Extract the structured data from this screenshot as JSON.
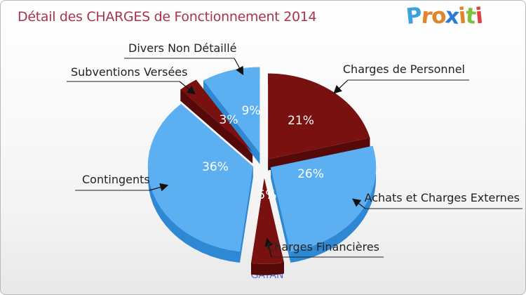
{
  "title": "Détail des CHARGES de Fonctionnement 2014",
  "logo": {
    "text": "Proxiti",
    "letters": [
      "P",
      "r",
      "o",
      "x",
      "i",
      "t",
      "i"
    ],
    "colors": [
      "#3da0e0",
      "#e0852c",
      "#e0852c",
      "#2c7ad8",
      "#e0852c",
      "#7fbf3a",
      "#e04040"
    ]
  },
  "commune": "GAYAN",
  "colors": {
    "blue": "#5cb0f2",
    "blue_side": "#2f88d3",
    "red": "#7a1111",
    "red_side": "#550909",
    "title": "#a8334e"
  },
  "chart_data": {
    "type": "pie",
    "title": "Détail des CHARGES de Fonctionnement 2014",
    "slices": [
      {
        "label": "Charges de Personnel",
        "value": 21,
        "pct_label": "21%",
        "color": "red"
      },
      {
        "label": "Achats et Charges Externes",
        "value": 26,
        "pct_label": "26%",
        "color": "blue"
      },
      {
        "label": "Charges Financières",
        "value": 5,
        "pct_label": "5%",
        "color": "red"
      },
      {
        "label": "Contingents",
        "value": 36,
        "pct_label": "36%",
        "color": "blue"
      },
      {
        "label": "Subventions Versées",
        "value": 3,
        "pct_label": "3%",
        "color": "red"
      },
      {
        "label": "Divers Non Détaillé",
        "value": 9,
        "pct_label": "9%",
        "color": "blue"
      }
    ]
  }
}
